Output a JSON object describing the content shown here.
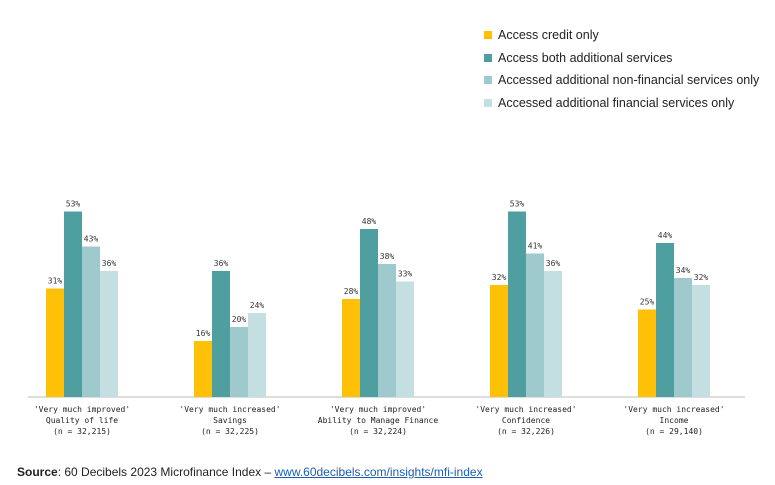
{
  "chart_data": {
    "type": "bar",
    "categories": [
      {
        "lines": [
          "'Very much improved'",
          "Quality of life",
          "(n = 32,215)"
        ]
      },
      {
        "lines": [
          "'Very much increased'",
          "Savings",
          "(n = 32,225)"
        ]
      },
      {
        "lines": [
          "'Very much improved'",
          "Ability to Manage Finance",
          "(n = 32,224)"
        ]
      },
      {
        "lines": [
          "'Very much increased'",
          "Confidence",
          "(n = 32,226)"
        ]
      },
      {
        "lines": [
          "'Very much increased'",
          "Income",
          "(n = 29,140)"
        ]
      }
    ],
    "series": [
      {
        "name": "Access credit only",
        "color": "#ffc107",
        "values": [
          31,
          16,
          28,
          32,
          25
        ]
      },
      {
        "name": "Access both additional services",
        "color": "#4f9ea0",
        "values": [
          53,
          36,
          48,
          53,
          44
        ]
      },
      {
        "name": "Accessed additional non-financial services only",
        "color": "#9ecacd",
        "values": [
          43,
          20,
          38,
          41,
          34
        ]
      },
      {
        "name": "Accessed additional financial services only",
        "color": "#c4dfe1",
        "values": [
          36,
          24,
          33,
          36,
          32
        ]
      }
    ],
    "value_suffix": "%",
    "ylim": [
      0,
      60
    ],
    "grid": false,
    "legend_position": "top-right"
  },
  "source": {
    "label": "Source",
    "text": ": 60 Decibels 2023 Microfinance Index – ",
    "link": "www.60decibels.com/insights/mfi-index"
  }
}
